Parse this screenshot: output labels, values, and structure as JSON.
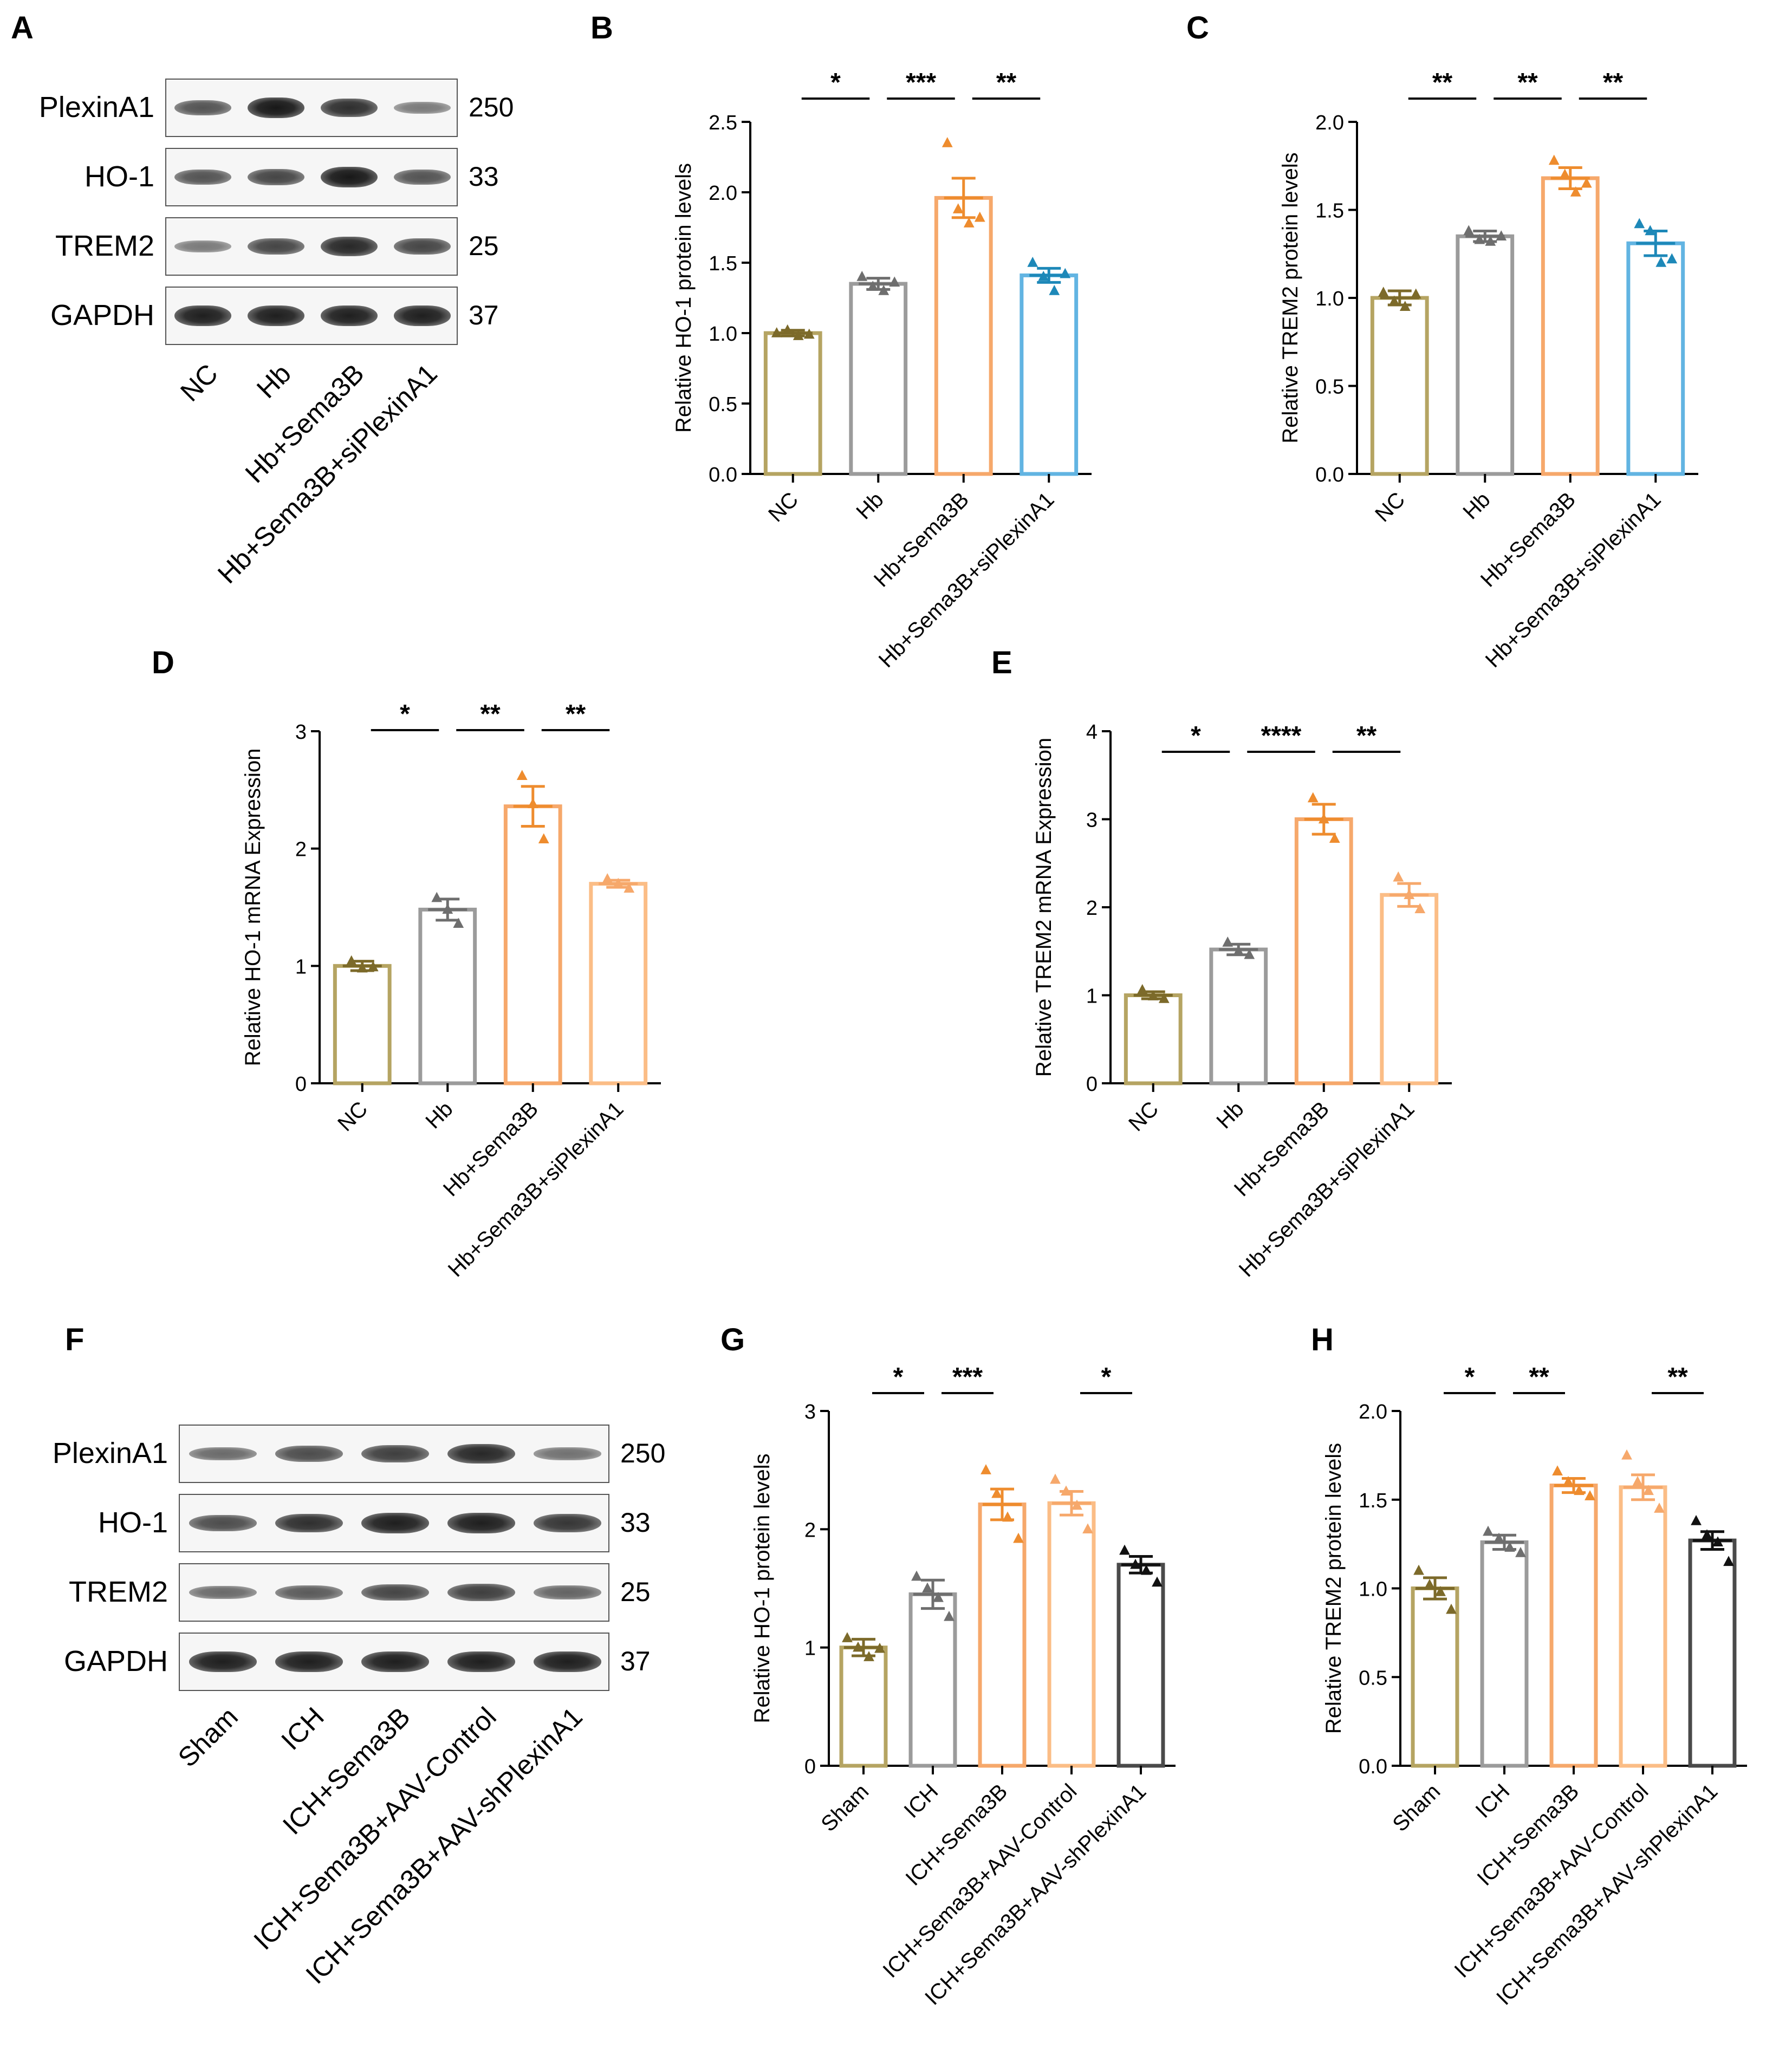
{
  "panels": {
    "a": "A",
    "b": "B",
    "c": "C",
    "d": "D",
    "e": "E",
    "f": "F",
    "g": "G",
    "h": "H"
  },
  "blot_A": {
    "proteins": [
      {
        "name": "PlexinA1",
        "kda": "250",
        "intensity": [
          0.55,
          0.95,
          0.8,
          0.3
        ]
      },
      {
        "name": "HO-1",
        "kda": "33",
        "intensity": [
          0.55,
          0.65,
          0.95,
          0.55
        ]
      },
      {
        "name": "TREM2",
        "kda": "25",
        "intensity": [
          0.3,
          0.65,
          0.85,
          0.65
        ]
      },
      {
        "name": "GAPDH",
        "kda": "37",
        "intensity": [
          0.9,
          0.9,
          0.9,
          0.9
        ]
      }
    ],
    "lanes": [
      "NC",
      "Hb",
      "Hb+Sema3B",
      "Hb+Sema3B+siPlexinA1"
    ]
  },
  "blot_F": {
    "proteins": [
      {
        "name": "PlexinA1",
        "kda": "250",
        "intensity": [
          0.4,
          0.6,
          0.7,
          0.85,
          0.35
        ]
      },
      {
        "name": "HO-1",
        "kda": "33",
        "intensity": [
          0.6,
          0.8,
          0.9,
          0.9,
          0.75
        ]
      },
      {
        "name": "TREM2",
        "kda": "25",
        "intensity": [
          0.4,
          0.5,
          0.65,
          0.7,
          0.45
        ]
      },
      {
        "name": "GAPDH",
        "kda": "37",
        "intensity": [
          0.9,
          0.9,
          0.9,
          0.9,
          0.9
        ]
      }
    ],
    "lanes": [
      "Sham",
      "ICH",
      "ICH+Sema3B",
      "ICH+Sema3B+AAV-Control",
      "ICH+Sema3B+AAV-shPlexinA1"
    ]
  },
  "chart_data": [
    {
      "panel": "B",
      "type": "bar",
      "ylabel": "Relative HO-1 protein levels",
      "categories": [
        "NC",
        "Hb",
        "Hb+Sema3B",
        "Hb+Sema3B+siPlexinA1"
      ],
      "values": [
        1.0,
        1.35,
        1.96,
        1.41
      ],
      "sem": [
        0.02,
        0.04,
        0.14,
        0.05
      ],
      "points": [
        [
          1.0,
          1.02,
          0.98,
          0.99
        ],
        [
          1.4,
          1.33,
          1.3,
          1.36
        ],
        [
          2.35,
          1.88,
          1.78,
          1.82
        ],
        [
          1.5,
          1.4,
          1.3,
          1.42
        ]
      ],
      "colors": [
        "#b5a462",
        "#9b9b9b",
        "#f6a86b",
        "#62b4e2"
      ],
      "point_colors": [
        "#7c6a2a",
        "#6e6e6e",
        "#ee8c2e",
        "#1d88b8"
      ],
      "ylim": [
        0,
        2.5
      ],
      "yticks": [
        0.0,
        0.5,
        1.0,
        1.5,
        2.0,
        2.5
      ],
      "tick_decimals": 1,
      "significance": [
        {
          "from": 0,
          "to": 1,
          "label": "*"
        },
        {
          "from": 1,
          "to": 2,
          "label": "***"
        },
        {
          "from": 2,
          "to": 3,
          "label": "**"
        }
      ]
    },
    {
      "panel": "C",
      "type": "bar",
      "ylabel": "Relative TREM2 protein levels",
      "categories": [
        "NC",
        "Hb",
        "Hb+Sema3B",
        "Hb+Sema3B+siPlexinA1"
      ],
      "values": [
        1.0,
        1.35,
        1.68,
        1.31
      ],
      "sem": [
        0.04,
        0.03,
        0.06,
        0.07
      ],
      "points": [
        [
          1.03,
          0.98,
          0.95,
          1.02
        ],
        [
          1.38,
          1.33,
          1.32,
          1.35
        ],
        [
          1.78,
          1.7,
          1.6,
          1.65
        ],
        [
          1.42,
          1.38,
          1.2,
          1.22
        ]
      ],
      "colors": [
        "#b5a462",
        "#9b9b9b",
        "#f6a86b",
        "#62b4e2"
      ],
      "point_colors": [
        "#7c6a2a",
        "#6e6e6e",
        "#ee8c2e",
        "#1d88b8"
      ],
      "ylim": [
        0,
        2.0
      ],
      "yticks": [
        0.0,
        0.5,
        1.0,
        1.5,
        2.0
      ],
      "tick_decimals": 1,
      "significance": [
        {
          "from": 0,
          "to": 1,
          "label": "**"
        },
        {
          "from": 1,
          "to": 2,
          "label": "**"
        },
        {
          "from": 2,
          "to": 3,
          "label": "**"
        }
      ]
    },
    {
      "panel": "D",
      "type": "bar",
      "ylabel": "Relative HO-1 mRNA Expression",
      "categories": [
        "NC",
        "Hb",
        "Hb+Sema3B",
        "Hb+Sema3B+siPlexinA1"
      ],
      "values": [
        1.0,
        1.48,
        2.36,
        1.7
      ],
      "sem": [
        0.04,
        0.09,
        0.17,
        0.03
      ],
      "points": [
        [
          1.04,
          0.98,
          0.99
        ],
        [
          1.58,
          1.48,
          1.36
        ],
        [
          2.62,
          2.38,
          2.08
        ],
        [
          1.74,
          1.7,
          1.66
        ]
      ],
      "colors": [
        "#b5a462",
        "#9b9b9b",
        "#f6a86b",
        "#fbbd86"
      ],
      "point_colors": [
        "#7c6a2a",
        "#6e6e6e",
        "#ee8c2e",
        "#f6a86b"
      ],
      "ylim": [
        0,
        3
      ],
      "yticks": [
        0,
        1,
        2,
        3
      ],
      "tick_decimals": 0,
      "significance": [
        {
          "from": 0,
          "to": 1,
          "label": "*"
        },
        {
          "from": 1,
          "to": 2,
          "label": "**"
        },
        {
          "from": 2,
          "to": 3,
          "label": "**"
        }
      ]
    },
    {
      "panel": "E",
      "type": "bar",
      "ylabel": "Relative TREM2 mRNA Expression",
      "categories": [
        "NC",
        "Hb",
        "Hb+Sema3B",
        "Hb+Sema3B+siPlexinA1"
      ],
      "values": [
        1.0,
        1.52,
        3.0,
        2.14
      ],
      "sem": [
        0.04,
        0.06,
        0.17,
        0.13
      ],
      "points": [
        [
          1.06,
          0.99,
          0.96
        ],
        [
          1.6,
          1.5,
          1.46
        ],
        [
          3.24,
          3.0,
          2.78
        ],
        [
          2.34,
          2.14,
          1.98
        ]
      ],
      "colors": [
        "#b5a462",
        "#9b9b9b",
        "#f6a86b",
        "#fbbd86"
      ],
      "point_colors": [
        "#7c6a2a",
        "#6e6e6e",
        "#ee8c2e",
        "#f6a86b"
      ],
      "ylim": [
        0,
        4
      ],
      "yticks": [
        0,
        1,
        2,
        3,
        4
      ],
      "tick_decimals": 0,
      "significance": [
        {
          "from": 0,
          "to": 1,
          "label": "*"
        },
        {
          "from": 1,
          "to": 2,
          "label": "****"
        },
        {
          "from": 2,
          "to": 3,
          "label": "**"
        }
      ]
    },
    {
      "panel": "G",
      "type": "bar",
      "ylabel": "Relative HO-1 protein levels",
      "categories": [
        "Sham",
        "ICH",
        "ICH+Sema3B",
        "ICH+Sema3B+AAV-Control",
        "ICH+Sema3B+AAV-shPlexinA1"
      ],
      "values": [
        1.0,
        1.45,
        2.21,
        2.22,
        1.7
      ],
      "sem": [
        0.07,
        0.12,
        0.13,
        0.1,
        0.07
      ],
      "points": [
        [
          1.08,
          1.0,
          0.92,
          0.99
        ],
        [
          1.6,
          1.5,
          1.42,
          1.26
        ],
        [
          2.5,
          2.3,
          2.1,
          1.92
        ],
        [
          2.42,
          2.32,
          2.2,
          2.0
        ],
        [
          1.82,
          1.7,
          1.65,
          1.55
        ]
      ],
      "colors": [
        "#b5a462",
        "#9b9b9b",
        "#f6a86b",
        "#fbbd86",
        "#4a4a4a"
      ],
      "point_colors": [
        "#7c6a2a",
        "#6e6e6e",
        "#ee8c2e",
        "#f6a86b",
        "#111111"
      ],
      "ylim": [
        0,
        3
      ],
      "yticks": [
        0,
        1,
        2,
        3
      ],
      "tick_decimals": 0,
      "significance": [
        {
          "from": 0,
          "to": 1,
          "label": "*"
        },
        {
          "from": 1,
          "to": 2,
          "label": "***"
        },
        {
          "from": 3,
          "to": 4,
          "label": "*"
        }
      ]
    },
    {
      "panel": "H",
      "type": "bar",
      "ylabel": "Relative TREM2 protein levels",
      "categories": [
        "Sham",
        "ICH",
        "ICH+Sema3B",
        "ICH+Sema3B+AAV-Control",
        "ICH+Sema3B+AAV-shPlexinA1"
      ],
      "values": [
        1.0,
        1.26,
        1.58,
        1.57,
        1.27
      ],
      "sem": [
        0.06,
        0.04,
        0.04,
        0.07,
        0.05
      ],
      "points": [
        [
          1.1,
          1.02,
          0.98,
          0.88
        ],
        [
          1.32,
          1.28,
          1.23,
          1.2
        ],
        [
          1.66,
          1.6,
          1.55,
          1.52
        ],
        [
          1.75,
          1.6,
          1.55,
          1.45
        ],
        [
          1.38,
          1.3,
          1.26,
          1.15
        ]
      ],
      "colors": [
        "#b5a462",
        "#9b9b9b",
        "#f6a86b",
        "#fbbd86",
        "#4a4a4a"
      ],
      "point_colors": [
        "#7c6a2a",
        "#6e6e6e",
        "#ee8c2e",
        "#f6a86b",
        "#111111"
      ],
      "ylim": [
        0,
        2.0
      ],
      "yticks": [
        0.0,
        0.5,
        1.0,
        1.5,
        2.0
      ],
      "tick_decimals": 1,
      "significance": [
        {
          "from": 0,
          "to": 1,
          "label": "*"
        },
        {
          "from": 1,
          "to": 2,
          "label": "**"
        },
        {
          "from": 3,
          "to": 4,
          "label": "**"
        }
      ]
    }
  ]
}
